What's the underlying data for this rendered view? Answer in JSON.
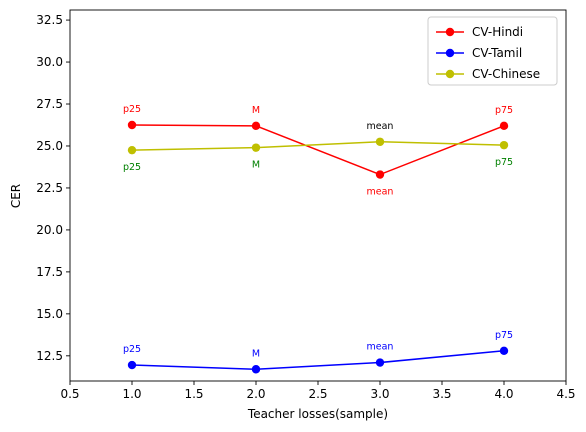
{
  "chart_data": {
    "type": "line",
    "xlabel": "Teacher losses(sample)",
    "ylabel": "CER",
    "xlim": [
      0.5,
      4.5
    ],
    "ylim": [
      11.0,
      33.1
    ],
    "xticks": [
      0.5,
      1.0,
      1.5,
      2.0,
      2.5,
      3.0,
      3.5,
      4.0,
      4.5
    ],
    "yticks": [
      12.5,
      15.0,
      17.5,
      20.0,
      22.5,
      25.0,
      27.5,
      30.0,
      32.5
    ],
    "xtick_labels": [
      "0.5",
      "1.0",
      "1.5",
      "2.0",
      "2.5",
      "3.0",
      "3.5",
      "4.0",
      "4.5"
    ],
    "ytick_labels": [
      "12.5",
      "15.0",
      "17.5",
      "20.0",
      "22.5",
      "25.0",
      "27.5",
      "30.0",
      "32.5"
    ],
    "grid": false,
    "legend_position": "top-right",
    "series": [
      {
        "name": "CV-Hindi",
        "color": "#ff0000",
        "x": [
          1,
          2,
          3,
          4
        ],
        "y": [
          26.25,
          26.2,
          23.3,
          26.2
        ],
        "labels": [
          "p25",
          "M",
          "mean",
          "p75"
        ],
        "label_dy": [
          0.95,
          0.95,
          -1.0,
          0.95
        ],
        "label_color": "#ff0000"
      },
      {
        "name": "CV-Tamil",
        "color": "#0000ff",
        "x": [
          1,
          2,
          3,
          4
        ],
        "y": [
          11.95,
          11.7,
          12.1,
          12.8
        ],
        "labels": [
          "p25",
          "M",
          "mean",
          "p75"
        ],
        "label_dy": [
          0.95,
          0.95,
          0.95,
          0.95
        ],
        "label_color": "#0000ff"
      },
      {
        "name": "CV-Chinese",
        "color": "#bfbf00",
        "x": [
          1,
          2,
          3,
          4
        ],
        "y": [
          24.75,
          24.9,
          25.25,
          25.05
        ],
        "labels": [
          "p25",
          "M",
          "mean",
          "p75"
        ],
        "label_dy": [
          -1.0,
          -1.0,
          0.95,
          -1.0
        ],
        "label_color": "#008000",
        "label_colors": [
          "#008000",
          "#008000",
          "#000000",
          "#008000"
        ]
      }
    ]
  }
}
